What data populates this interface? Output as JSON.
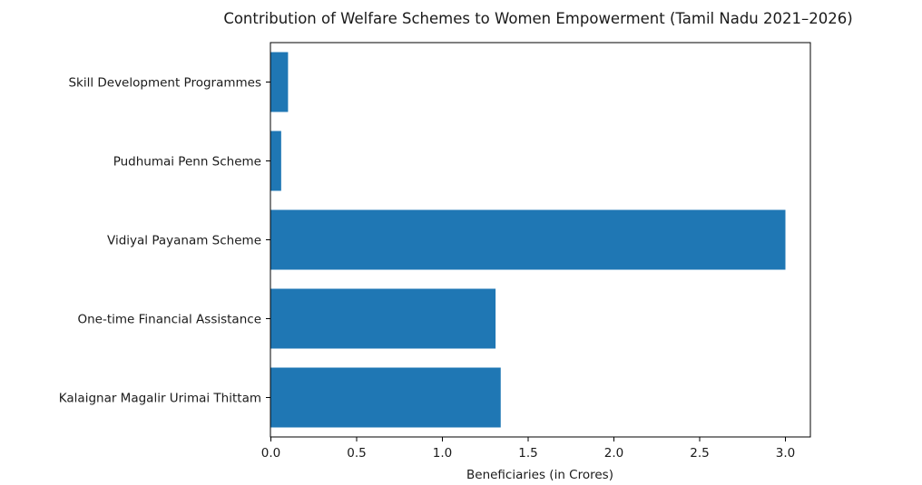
{
  "chart_data": {
    "type": "bar",
    "orientation": "horizontal",
    "title": "Contribution of Welfare Schemes to Women Empowerment (Tamil Nadu 2021–2026)",
    "xlabel": "Beneficiaries (in Crores)",
    "ylabel": "",
    "categories": [
      "Kalaignar Magalir Urimai Thittam",
      "One-time Financial Assistance",
      "Vidiyal Payanam Scheme",
      "Pudhumai Penn Scheme",
      "Skill Development Programmes"
    ],
    "values": [
      1.34,
      1.31,
      3.0,
      0.06,
      0.1
    ],
    "xlim": [
      0,
      3.15
    ],
    "xticks": [
      "0.0",
      "0.5",
      "1.0",
      "1.5",
      "2.0",
      "2.5",
      "3.0"
    ],
    "grid": false,
    "bar_color": "#1f77b4"
  }
}
